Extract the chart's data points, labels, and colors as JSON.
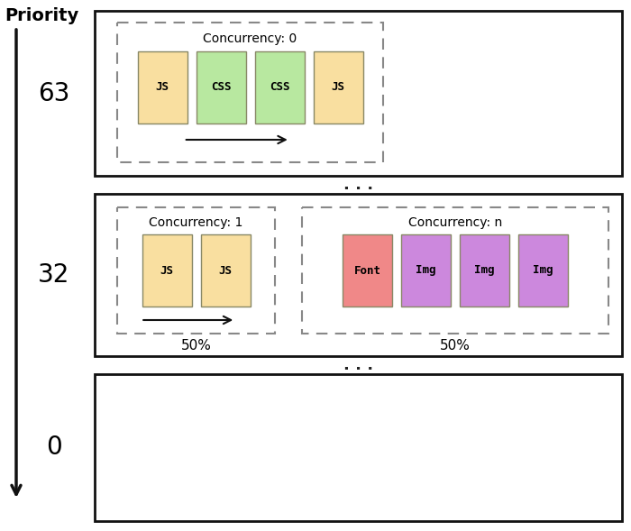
{
  "title": "Priority",
  "box1_label": "Concurrency: 0",
  "box1_cards": [
    {
      "text": "JS",
      "color": "#f9dfa0"
    },
    {
      "text": "CSS",
      "color": "#b8e8a0"
    },
    {
      "text": "CSS",
      "color": "#b8e8a0"
    },
    {
      "text": "JS",
      "color": "#f9dfa0"
    }
  ],
  "box2a_label": "Concurrency: 1",
  "box2a_cards": [
    {
      "text": "JS",
      "color": "#f9dfa0"
    },
    {
      "text": "JS",
      "color": "#f9dfa0"
    }
  ],
  "box2a_pct": "50%",
  "box2b_label": "Concurrency: n",
  "box2b_cards": [
    {
      "text": "Font",
      "color": "#f08888"
    },
    {
      "text": "Img",
      "color": "#cc88dd"
    },
    {
      "text": "Img",
      "color": "#cc88dd"
    },
    {
      "text": "Img",
      "color": "#cc88dd"
    }
  ],
  "box2b_pct": "50%",
  "label_63": "63",
  "label_32": "32",
  "label_0": "0",
  "dots": ". . .",
  "card_edge_color": "#888866",
  "dashed_box_color": "#888888",
  "outer_box_color": "#111111",
  "arrow_color": "#111111",
  "bg_color": "#ffffff",
  "font_mono": "monospace",
  "font_sans": "DejaVu Sans"
}
